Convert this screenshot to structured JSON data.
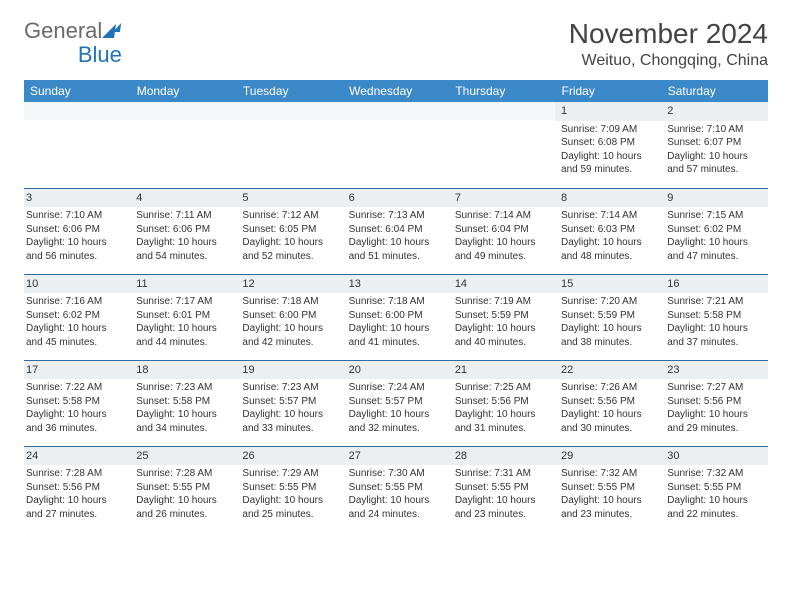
{
  "logo": {
    "general": "General",
    "blue": "Blue"
  },
  "header": {
    "month_title": "November 2024",
    "location": "Weituo, Chongqing, China"
  },
  "colors": {
    "header_bg": "#3b89c9",
    "header_text": "#ffffff",
    "daynum_bg": "#eceff2",
    "border": "#2e6da4",
    "body_text": "#333333",
    "logo_gray": "#6a6a6a",
    "logo_blue": "#2173b8"
  },
  "weekdays": [
    "Sunday",
    "Monday",
    "Tuesday",
    "Wednesday",
    "Thursday",
    "Friday",
    "Saturday"
  ],
  "weeks": [
    [
      null,
      null,
      null,
      null,
      null,
      {
        "n": "1",
        "sr": "Sunrise: 7:09 AM",
        "ss": "Sunset: 6:08 PM",
        "d1": "Daylight: 10 hours",
        "d2": "and 59 minutes."
      },
      {
        "n": "2",
        "sr": "Sunrise: 7:10 AM",
        "ss": "Sunset: 6:07 PM",
        "d1": "Daylight: 10 hours",
        "d2": "and 57 minutes."
      }
    ],
    [
      {
        "n": "3",
        "sr": "Sunrise: 7:10 AM",
        "ss": "Sunset: 6:06 PM",
        "d1": "Daylight: 10 hours",
        "d2": "and 56 minutes."
      },
      {
        "n": "4",
        "sr": "Sunrise: 7:11 AM",
        "ss": "Sunset: 6:06 PM",
        "d1": "Daylight: 10 hours",
        "d2": "and 54 minutes."
      },
      {
        "n": "5",
        "sr": "Sunrise: 7:12 AM",
        "ss": "Sunset: 6:05 PM",
        "d1": "Daylight: 10 hours",
        "d2": "and 52 minutes."
      },
      {
        "n": "6",
        "sr": "Sunrise: 7:13 AM",
        "ss": "Sunset: 6:04 PM",
        "d1": "Daylight: 10 hours",
        "d2": "and 51 minutes."
      },
      {
        "n": "7",
        "sr": "Sunrise: 7:14 AM",
        "ss": "Sunset: 6:04 PM",
        "d1": "Daylight: 10 hours",
        "d2": "and 49 minutes."
      },
      {
        "n": "8",
        "sr": "Sunrise: 7:14 AM",
        "ss": "Sunset: 6:03 PM",
        "d1": "Daylight: 10 hours",
        "d2": "and 48 minutes."
      },
      {
        "n": "9",
        "sr": "Sunrise: 7:15 AM",
        "ss": "Sunset: 6:02 PM",
        "d1": "Daylight: 10 hours",
        "d2": "and 47 minutes."
      }
    ],
    [
      {
        "n": "10",
        "sr": "Sunrise: 7:16 AM",
        "ss": "Sunset: 6:02 PM",
        "d1": "Daylight: 10 hours",
        "d2": "and 45 minutes."
      },
      {
        "n": "11",
        "sr": "Sunrise: 7:17 AM",
        "ss": "Sunset: 6:01 PM",
        "d1": "Daylight: 10 hours",
        "d2": "and 44 minutes."
      },
      {
        "n": "12",
        "sr": "Sunrise: 7:18 AM",
        "ss": "Sunset: 6:00 PM",
        "d1": "Daylight: 10 hours",
        "d2": "and 42 minutes."
      },
      {
        "n": "13",
        "sr": "Sunrise: 7:18 AM",
        "ss": "Sunset: 6:00 PM",
        "d1": "Daylight: 10 hours",
        "d2": "and 41 minutes."
      },
      {
        "n": "14",
        "sr": "Sunrise: 7:19 AM",
        "ss": "Sunset: 5:59 PM",
        "d1": "Daylight: 10 hours",
        "d2": "and 40 minutes."
      },
      {
        "n": "15",
        "sr": "Sunrise: 7:20 AM",
        "ss": "Sunset: 5:59 PM",
        "d1": "Daylight: 10 hours",
        "d2": "and 38 minutes."
      },
      {
        "n": "16",
        "sr": "Sunrise: 7:21 AM",
        "ss": "Sunset: 5:58 PM",
        "d1": "Daylight: 10 hours",
        "d2": "and 37 minutes."
      }
    ],
    [
      {
        "n": "17",
        "sr": "Sunrise: 7:22 AM",
        "ss": "Sunset: 5:58 PM",
        "d1": "Daylight: 10 hours",
        "d2": "and 36 minutes."
      },
      {
        "n": "18",
        "sr": "Sunrise: 7:23 AM",
        "ss": "Sunset: 5:58 PM",
        "d1": "Daylight: 10 hours",
        "d2": "and 34 minutes."
      },
      {
        "n": "19",
        "sr": "Sunrise: 7:23 AM",
        "ss": "Sunset: 5:57 PM",
        "d1": "Daylight: 10 hours",
        "d2": "and 33 minutes."
      },
      {
        "n": "20",
        "sr": "Sunrise: 7:24 AM",
        "ss": "Sunset: 5:57 PM",
        "d1": "Daylight: 10 hours",
        "d2": "and 32 minutes."
      },
      {
        "n": "21",
        "sr": "Sunrise: 7:25 AM",
        "ss": "Sunset: 5:56 PM",
        "d1": "Daylight: 10 hours",
        "d2": "and 31 minutes."
      },
      {
        "n": "22",
        "sr": "Sunrise: 7:26 AM",
        "ss": "Sunset: 5:56 PM",
        "d1": "Daylight: 10 hours",
        "d2": "and 30 minutes."
      },
      {
        "n": "23",
        "sr": "Sunrise: 7:27 AM",
        "ss": "Sunset: 5:56 PM",
        "d1": "Daylight: 10 hours",
        "d2": "and 29 minutes."
      }
    ],
    [
      {
        "n": "24",
        "sr": "Sunrise: 7:28 AM",
        "ss": "Sunset: 5:56 PM",
        "d1": "Daylight: 10 hours",
        "d2": "and 27 minutes."
      },
      {
        "n": "25",
        "sr": "Sunrise: 7:28 AM",
        "ss": "Sunset: 5:55 PM",
        "d1": "Daylight: 10 hours",
        "d2": "and 26 minutes."
      },
      {
        "n": "26",
        "sr": "Sunrise: 7:29 AM",
        "ss": "Sunset: 5:55 PM",
        "d1": "Daylight: 10 hours",
        "d2": "and 25 minutes."
      },
      {
        "n": "27",
        "sr": "Sunrise: 7:30 AM",
        "ss": "Sunset: 5:55 PM",
        "d1": "Daylight: 10 hours",
        "d2": "and 24 minutes."
      },
      {
        "n": "28",
        "sr": "Sunrise: 7:31 AM",
        "ss": "Sunset: 5:55 PM",
        "d1": "Daylight: 10 hours",
        "d2": "and 23 minutes."
      },
      {
        "n": "29",
        "sr": "Sunrise: 7:32 AM",
        "ss": "Sunset: 5:55 PM",
        "d1": "Daylight: 10 hours",
        "d2": "and 23 minutes."
      },
      {
        "n": "30",
        "sr": "Sunrise: 7:32 AM",
        "ss": "Sunset: 5:55 PM",
        "d1": "Daylight: 10 hours",
        "d2": "and 22 minutes."
      }
    ]
  ]
}
